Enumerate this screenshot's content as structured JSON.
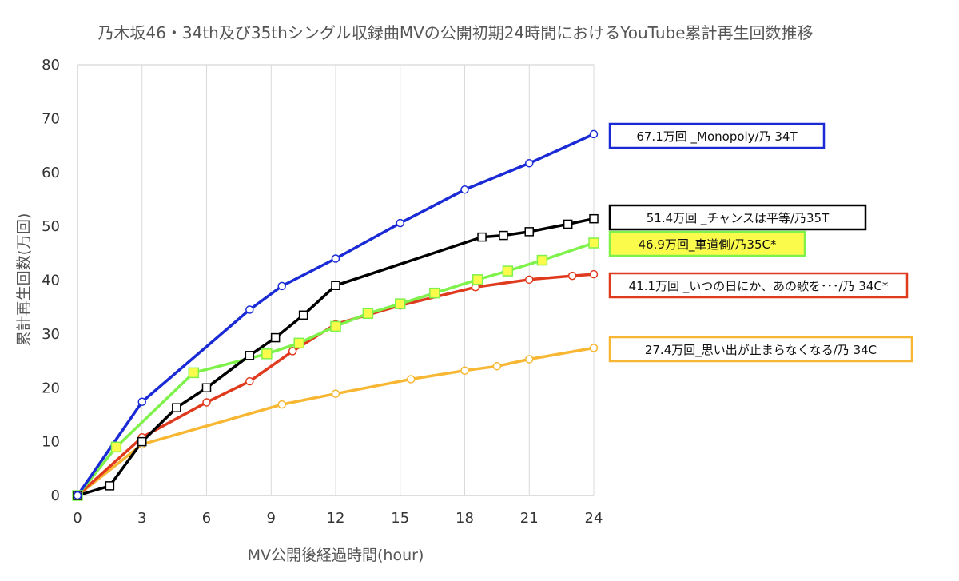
{
  "chart_data": {
    "type": "line",
    "title": "乃木坂46・34th及び35thシングル収録曲MVの公開初期24時間におけるYouTube累計再生回数推移",
    "xlabel": "MV公開後経過時間(hour)",
    "ylabel": "累計再生回数(万回)",
    "xlim": [
      0,
      24
    ],
    "ylim": [
      0,
      80
    ],
    "xticks": [
      "0",
      "3",
      "6",
      "9",
      "12",
      "15",
      "18",
      "21",
      "24"
    ],
    "yticks": [
      "0",
      "10",
      "20",
      "30",
      "40",
      "50",
      "60",
      "70",
      "80"
    ],
    "grid": "vertical",
    "series": [
      {
        "name": "67.1万回 _Monopoly/乃 34T",
        "color": "#1a2bd6",
        "marker": "circle",
        "marker_fill": "#ffffff",
        "box_fill": "#ffffff",
        "x": [
          0,
          3,
          8,
          9.5,
          12,
          15,
          18,
          21,
          24
        ],
        "y": [
          0,
          17.4,
          34.5,
          38.9,
          44.0,
          50.6,
          56.8,
          61.7,
          67.1
        ]
      },
      {
        "name": "51.4万回 _チャンスは平等/乃35T",
        "color": "#000000",
        "marker": "square",
        "marker_fill": "#ffffff",
        "box_fill": "#ffffff",
        "x": [
          0,
          1.5,
          3,
          4.6,
          6,
          8,
          9.2,
          10.5,
          12,
          18.8,
          19.8,
          21,
          22.8,
          24
        ],
        "y": [
          0,
          1.8,
          10.0,
          16.3,
          20.0,
          26.0,
          29.3,
          33.5,
          39.0,
          48.0,
          48.3,
          49.0,
          50.4,
          51.4
        ]
      },
      {
        "name": "46.9万回_車道側/乃35C*",
        "color": "#7ef24a",
        "marker": "square",
        "marker_fill": "#fbfb4b",
        "box_fill": "#fbfb4b",
        "x": [
          0,
          1.8,
          5.4,
          8.8,
          10.3,
          12,
          13.5,
          15,
          16.6,
          18.6,
          20,
          21.6,
          24
        ],
        "y": [
          0,
          9.0,
          22.8,
          26.3,
          28.3,
          31.4,
          33.8,
          35.6,
          37.6,
          40.1,
          41.7,
          43.7,
          46.9
        ]
      },
      {
        "name": "41.1万回 _いつの日にか、あの歌を･･･/乃 34C*",
        "color": "#e03a1e",
        "marker": "circle",
        "marker_fill": "#ffffff",
        "box_fill": "#ffffff",
        "x": [
          0,
          3,
          6,
          8,
          10,
          12,
          15,
          18.5,
          21,
          23,
          24
        ],
        "y": [
          0,
          10.8,
          17.3,
          21.2,
          26.8,
          31.8,
          35.3,
          38.7,
          40.1,
          40.8,
          41.1
        ]
      },
      {
        "name": "27.4万回_思い出が止まらなくなる/乃 34C",
        "color": "#f7b733",
        "marker": "circle",
        "marker_fill": "#ffffff",
        "box_fill": "#ffffff",
        "x": [
          0,
          3,
          9.5,
          12,
          15.5,
          18,
          19.5,
          21,
          24
        ],
        "y": [
          0,
          9.5,
          16.9,
          18.9,
          21.6,
          23.2,
          24.0,
          25.3,
          27.4
        ]
      }
    ]
  }
}
